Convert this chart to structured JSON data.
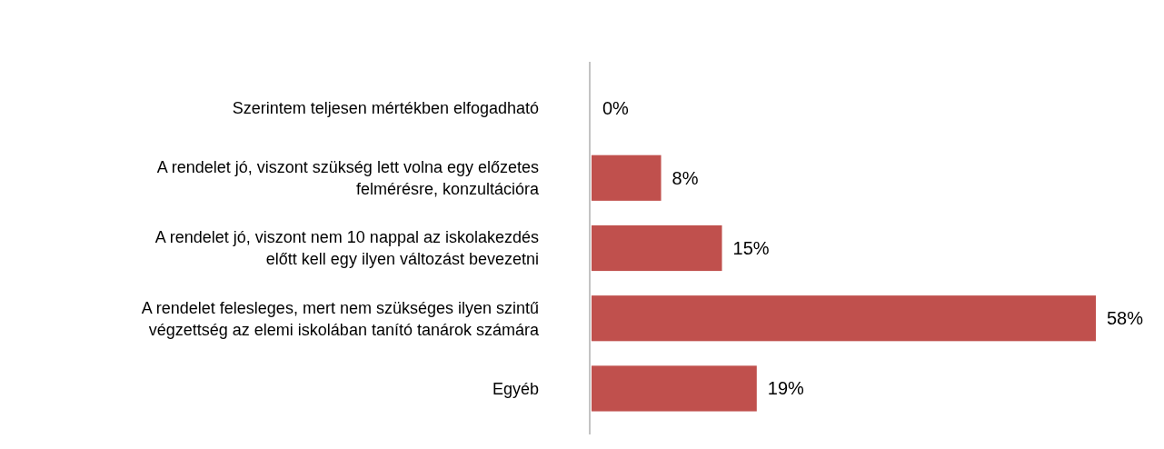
{
  "chart_data": {
    "type": "bar",
    "orientation": "horizontal",
    "categories": [
      "Szerintem teljesen mértékben elfogadható",
      "A rendelet jó, viszont szükség lett volna egy előzetes felmérésre, konzultációra",
      "A rendelet jó, viszont nem 10 nappal az iskolakezdés előtt kell egy ilyen változást bevezetni",
      "A rendelet felesleges, mert nem szükséges ilyen szintű végzettség az elemi iskolában tanító tanárok számára",
      "Egyéb"
    ],
    "values": [
      0,
      8,
      15,
      58,
      19
    ],
    "value_labels": [
      "0%",
      "8%",
      "15%",
      "58%",
      "19%"
    ],
    "color": "#c0504d"
  }
}
